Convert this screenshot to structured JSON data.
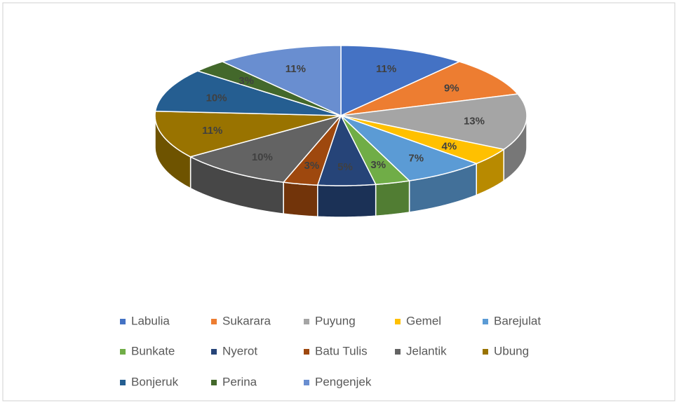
{
  "chart_data": {
    "type": "pie",
    "categories": [
      "Labulia",
      "Sukarara",
      "Puyung",
      "Gemel",
      "Barejulat",
      "Bunkate",
      "Nyerot",
      "Batu Tulis",
      "Jelantik",
      "Ubung",
      "Bonjeruk",
      "Perina",
      "Pengenjek"
    ],
    "values": [
      11,
      9,
      13,
      4,
      7,
      3,
      5,
      3,
      10,
      11,
      10,
      3,
      11
    ],
    "value_labels": [
      "11%",
      "9%",
      "13%",
      "4%",
      "7%",
      "3%",
      "5%",
      "3%",
      "10%",
      "11%",
      "10%",
      "3%",
      "11%"
    ],
    "colors": [
      "#4472c4",
      "#ed7d31",
      "#a5a5a5",
      "#ffc000",
      "#5b9bd5",
      "#70ad47",
      "#264478",
      "#9e480e",
      "#636363",
      "#997300",
      "#255e91",
      "#43682b",
      "#698ed0"
    ],
    "legend": "bottom"
  }
}
